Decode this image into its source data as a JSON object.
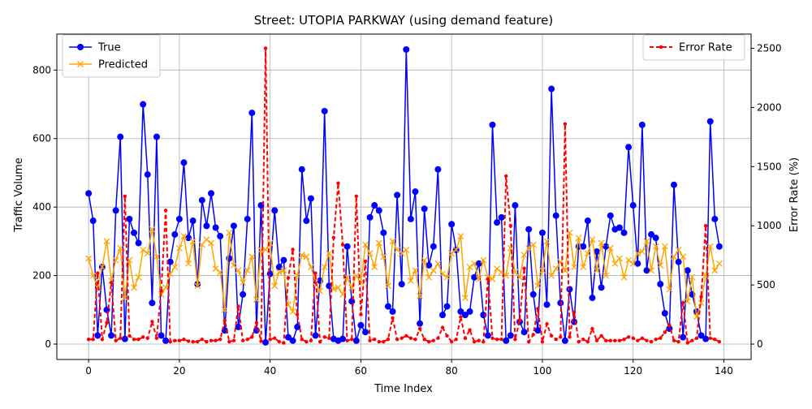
{
  "chart_data": {
    "type": "line",
    "title": "Street: UTOPIA PARKWAY (using demand feature)",
    "xlabel": "Time Index",
    "ylabel_left": "Traffic Volume",
    "ylabel_right": "Error Rate (%)",
    "xlim": [
      -7,
      146
    ],
    "ylim_left": [
      -45,
      905
    ],
    "ylim_right": [
      -130,
      2620
    ],
    "x_ticks": [
      0,
      20,
      40,
      60,
      80,
      100,
      120,
      140
    ],
    "y_ticks_left": [
      0,
      200,
      400,
      600,
      800
    ],
    "y_ticks_right": [
      0,
      500,
      1000,
      1500,
      2000,
      2500
    ],
    "grid": true,
    "legend_left": "top-left",
    "legend_right": "top-right",
    "series": [
      {
        "name": "True",
        "color": "#0000ff",
        "marker": "circle",
        "axis": "left",
        "values": [
          440,
          360,
          25,
          225,
          100,
          25,
          390,
          605,
          15,
          365,
          325,
          295,
          700,
          495,
          120,
          605,
          25,
          10,
          240,
          320,
          365,
          530,
          310,
          360,
          175,
          420,
          345,
          440,
          340,
          315,
          40,
          250,
          345,
          50,
          145,
          365,
          675,
          40,
          405,
          5,
          205,
          390,
          225,
          245,
          20,
          10,
          50,
          510,
          360,
          425,
          25,
          185,
          680,
          170,
          15,
          10,
          15,
          285,
          125,
          10,
          55,
          35,
          370,
          405,
          390,
          325,
          110,
          95,
          435,
          175,
          860,
          365,
          445,
          60,
          395,
          230,
          285,
          510,
          85,
          110,
          350,
          275,
          95,
          85,
          95,
          195,
          235,
          85,
          25,
          640,
          355,
          370,
          10,
          25,
          405,
          65,
          35,
          335,
          145,
          40,
          325,
          115,
          745,
          375,
          120,
          10,
          160,
          65,
          285,
          285,
          360,
          135,
          270,
          165,
          285,
          375,
          335,
          340,
          325,
          575,
          405,
          235,
          640,
          215,
          320,
          310,
          175,
          90,
          45,
          465,
          240,
          20,
          215,
          145,
          95,
          25,
          15,
          650,
          365,
          285
        ]
      },
      {
        "name": "Predicted",
        "color": "#ffa500",
        "marker": "x",
        "axis": "left",
        "values": [
          250,
          200,
          165,
          225,
          300,
          185,
          245,
          280,
          135,
          245,
          165,
          195,
          275,
          265,
          335,
          255,
          145,
          165,
          205,
          225,
          280,
          315,
          235,
          300,
          170,
          290,
          305,
          295,
          220,
          210,
          100,
          325,
          230,
          215,
          180,
          215,
          255,
          130,
          275,
          275,
          295,
          170,
          210,
          215,
          115,
          95,
          200,
          260,
          255,
          225,
          180,
          155,
          225,
          265,
          160,
          165,
          145,
          195,
          165,
          200,
          180,
          290,
          265,
          225,
          295,
          255,
          170,
          300,
          275,
          265,
          275,
          185,
          215,
          140,
          245,
          195,
          215,
          235,
          205,
          195,
          265,
          275,
          315,
          135,
          225,
          235,
          190,
          245,
          195,
          190,
          220,
          210,
          200,
          280,
          210,
          195,
          260,
          280,
          290,
          170,
          215,
          300,
          200,
          220,
          240,
          215,
          325,
          225,
          310,
          225,
          265,
          305,
          215,
          295,
          200,
          280,
          235,
          250,
          195,
          245,
          235,
          265,
          270,
          300,
          215,
          285,
          230,
          285,
          160,
          255,
          275,
          255,
          125,
          195,
          80,
          120,
          200,
          285,
          215,
          235
        ]
      },
      {
        "name": "Error Rate",
        "color": "#ff0000",
        "marker": "dot",
        "line": "dashed",
        "axis": "right",
        "values": [
          40,
          40,
          600,
          40,
          180,
          520,
          30,
          50,
          1250,
          70,
          40,
          40,
          60,
          50,
          190,
          50,
          450,
          1130,
          20,
          30,
          30,
          40,
          25,
          20,
          20,
          40,
          20,
          30,
          30,
          40,
          200,
          20,
          30,
          320,
          30,
          40,
          60,
          180,
          25,
          2500,
          40,
          50,
          20,
          10,
          560,
          800,
          250,
          40,
          20,
          30,
          600,
          20,
          60,
          50,
          900,
          1360,
          840,
          30,
          40,
          1250,
          250,
          700,
          30,
          40,
          20,
          20,
          40,
          220,
          40,
          50,
          70,
          50,
          40,
          130,
          40,
          20,
          30,
          50,
          140,
          70,
          20,
          40,
          230,
          50,
          120,
          20,
          30,
          20,
          550,
          50,
          40,
          40,
          1420,
          1000,
          40,
          200,
          640,
          20,
          80,
          300,
          20,
          170,
          70,
          40,
          60,
          1860,
          60,
          270,
          20,
          40,
          20,
          130,
          30,
          70,
          30,
          30,
          30,
          30,
          40,
          60,
          50,
          30,
          50,
          30,
          20,
          40,
          50,
          100,
          160,
          30,
          20,
          350,
          10,
          30,
          50,
          400,
          1000,
          50,
          40,
          20
        ]
      }
    ]
  }
}
